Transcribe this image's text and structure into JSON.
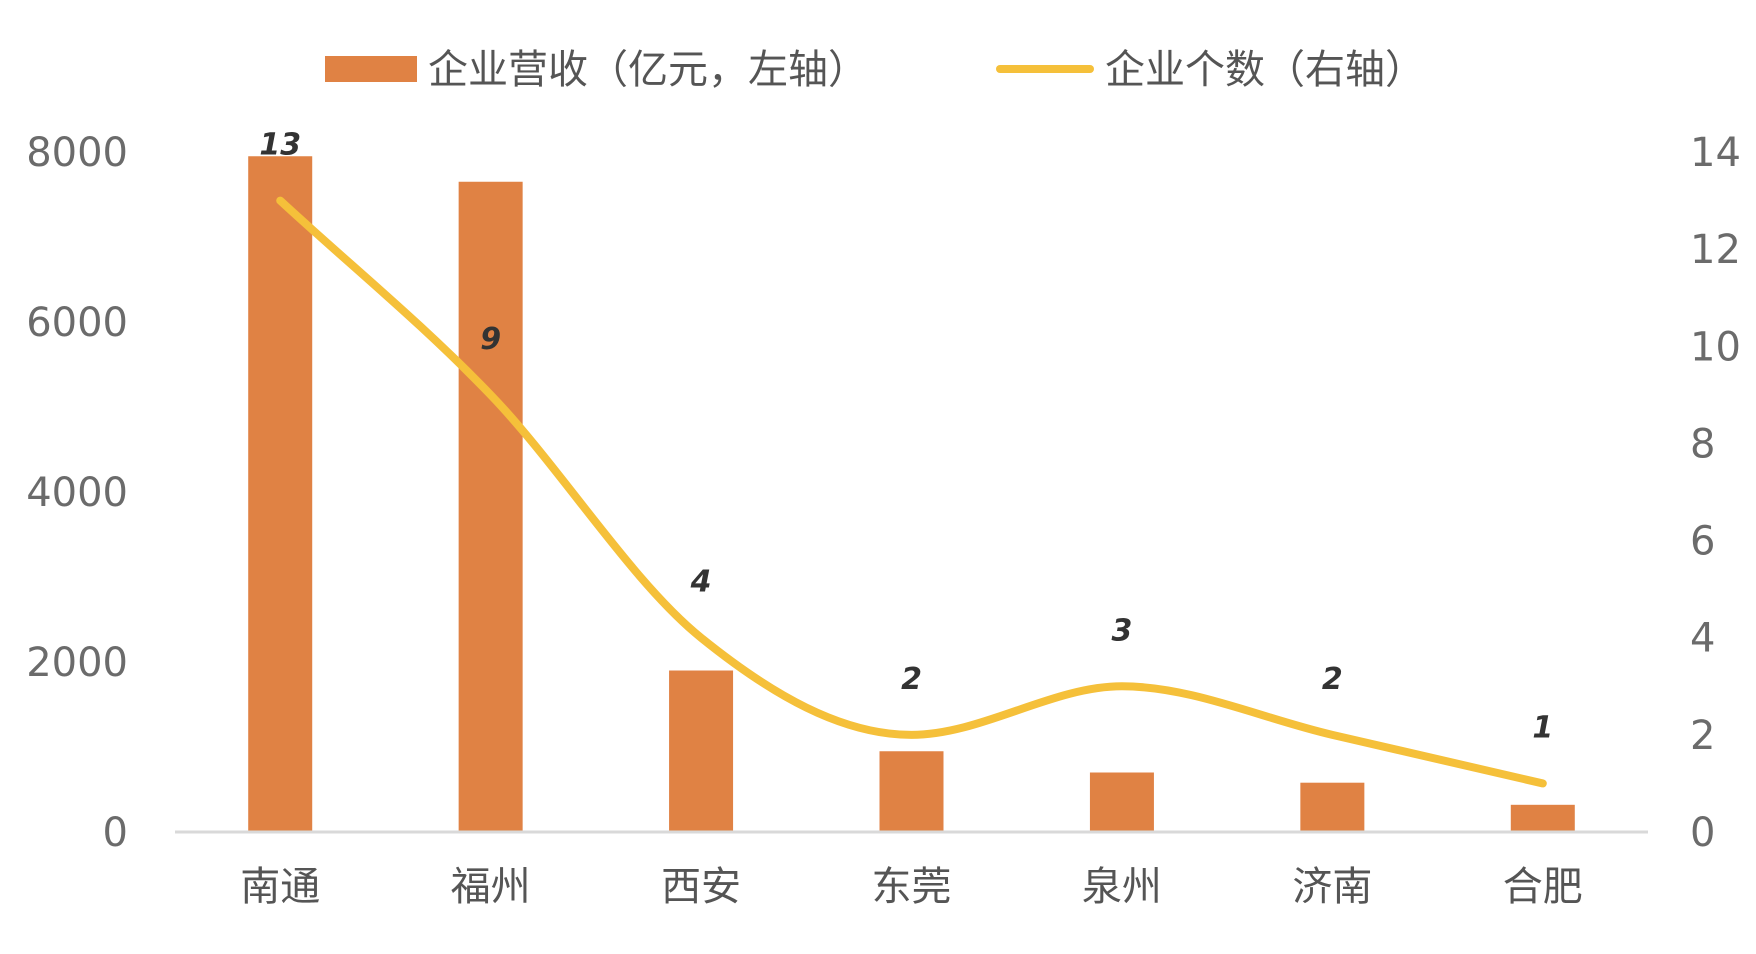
{
  "chart_data": {
    "type": "bar",
    "categories": [
      "南通",
      "福州",
      "西安",
      "东莞",
      "泉州",
      "济南",
      "合肥"
    ],
    "series": [
      {
        "name": "企业营收（亿元，左轴）",
        "type": "bar",
        "axis": "left",
        "color": "#E08244",
        "values": [
          7950,
          7650,
          1900,
          950,
          700,
          580,
          320
        ]
      },
      {
        "name": "企业个数（右轴）",
        "type": "line",
        "axis": "right",
        "color": "#F5C03A",
        "smooth": true,
        "values": [
          13,
          9,
          4,
          2,
          3,
          2,
          1
        ],
        "data_labels": [
          "13",
          "9",
          "4",
          "2",
          "3",
          "2",
          "1"
        ]
      }
    ],
    "y_left": {
      "ylim": [
        0,
        8000
      ],
      "ticks": [
        "0",
        "2000",
        "4000",
        "6000",
        "8000"
      ]
    },
    "y_right": {
      "ylim": [
        0,
        14
      ],
      "ticks": [
        "0",
        "2",
        "4",
        "6",
        "8",
        "10",
        "12",
        "14"
      ]
    },
    "legend_position": "top-center",
    "grid": false
  }
}
